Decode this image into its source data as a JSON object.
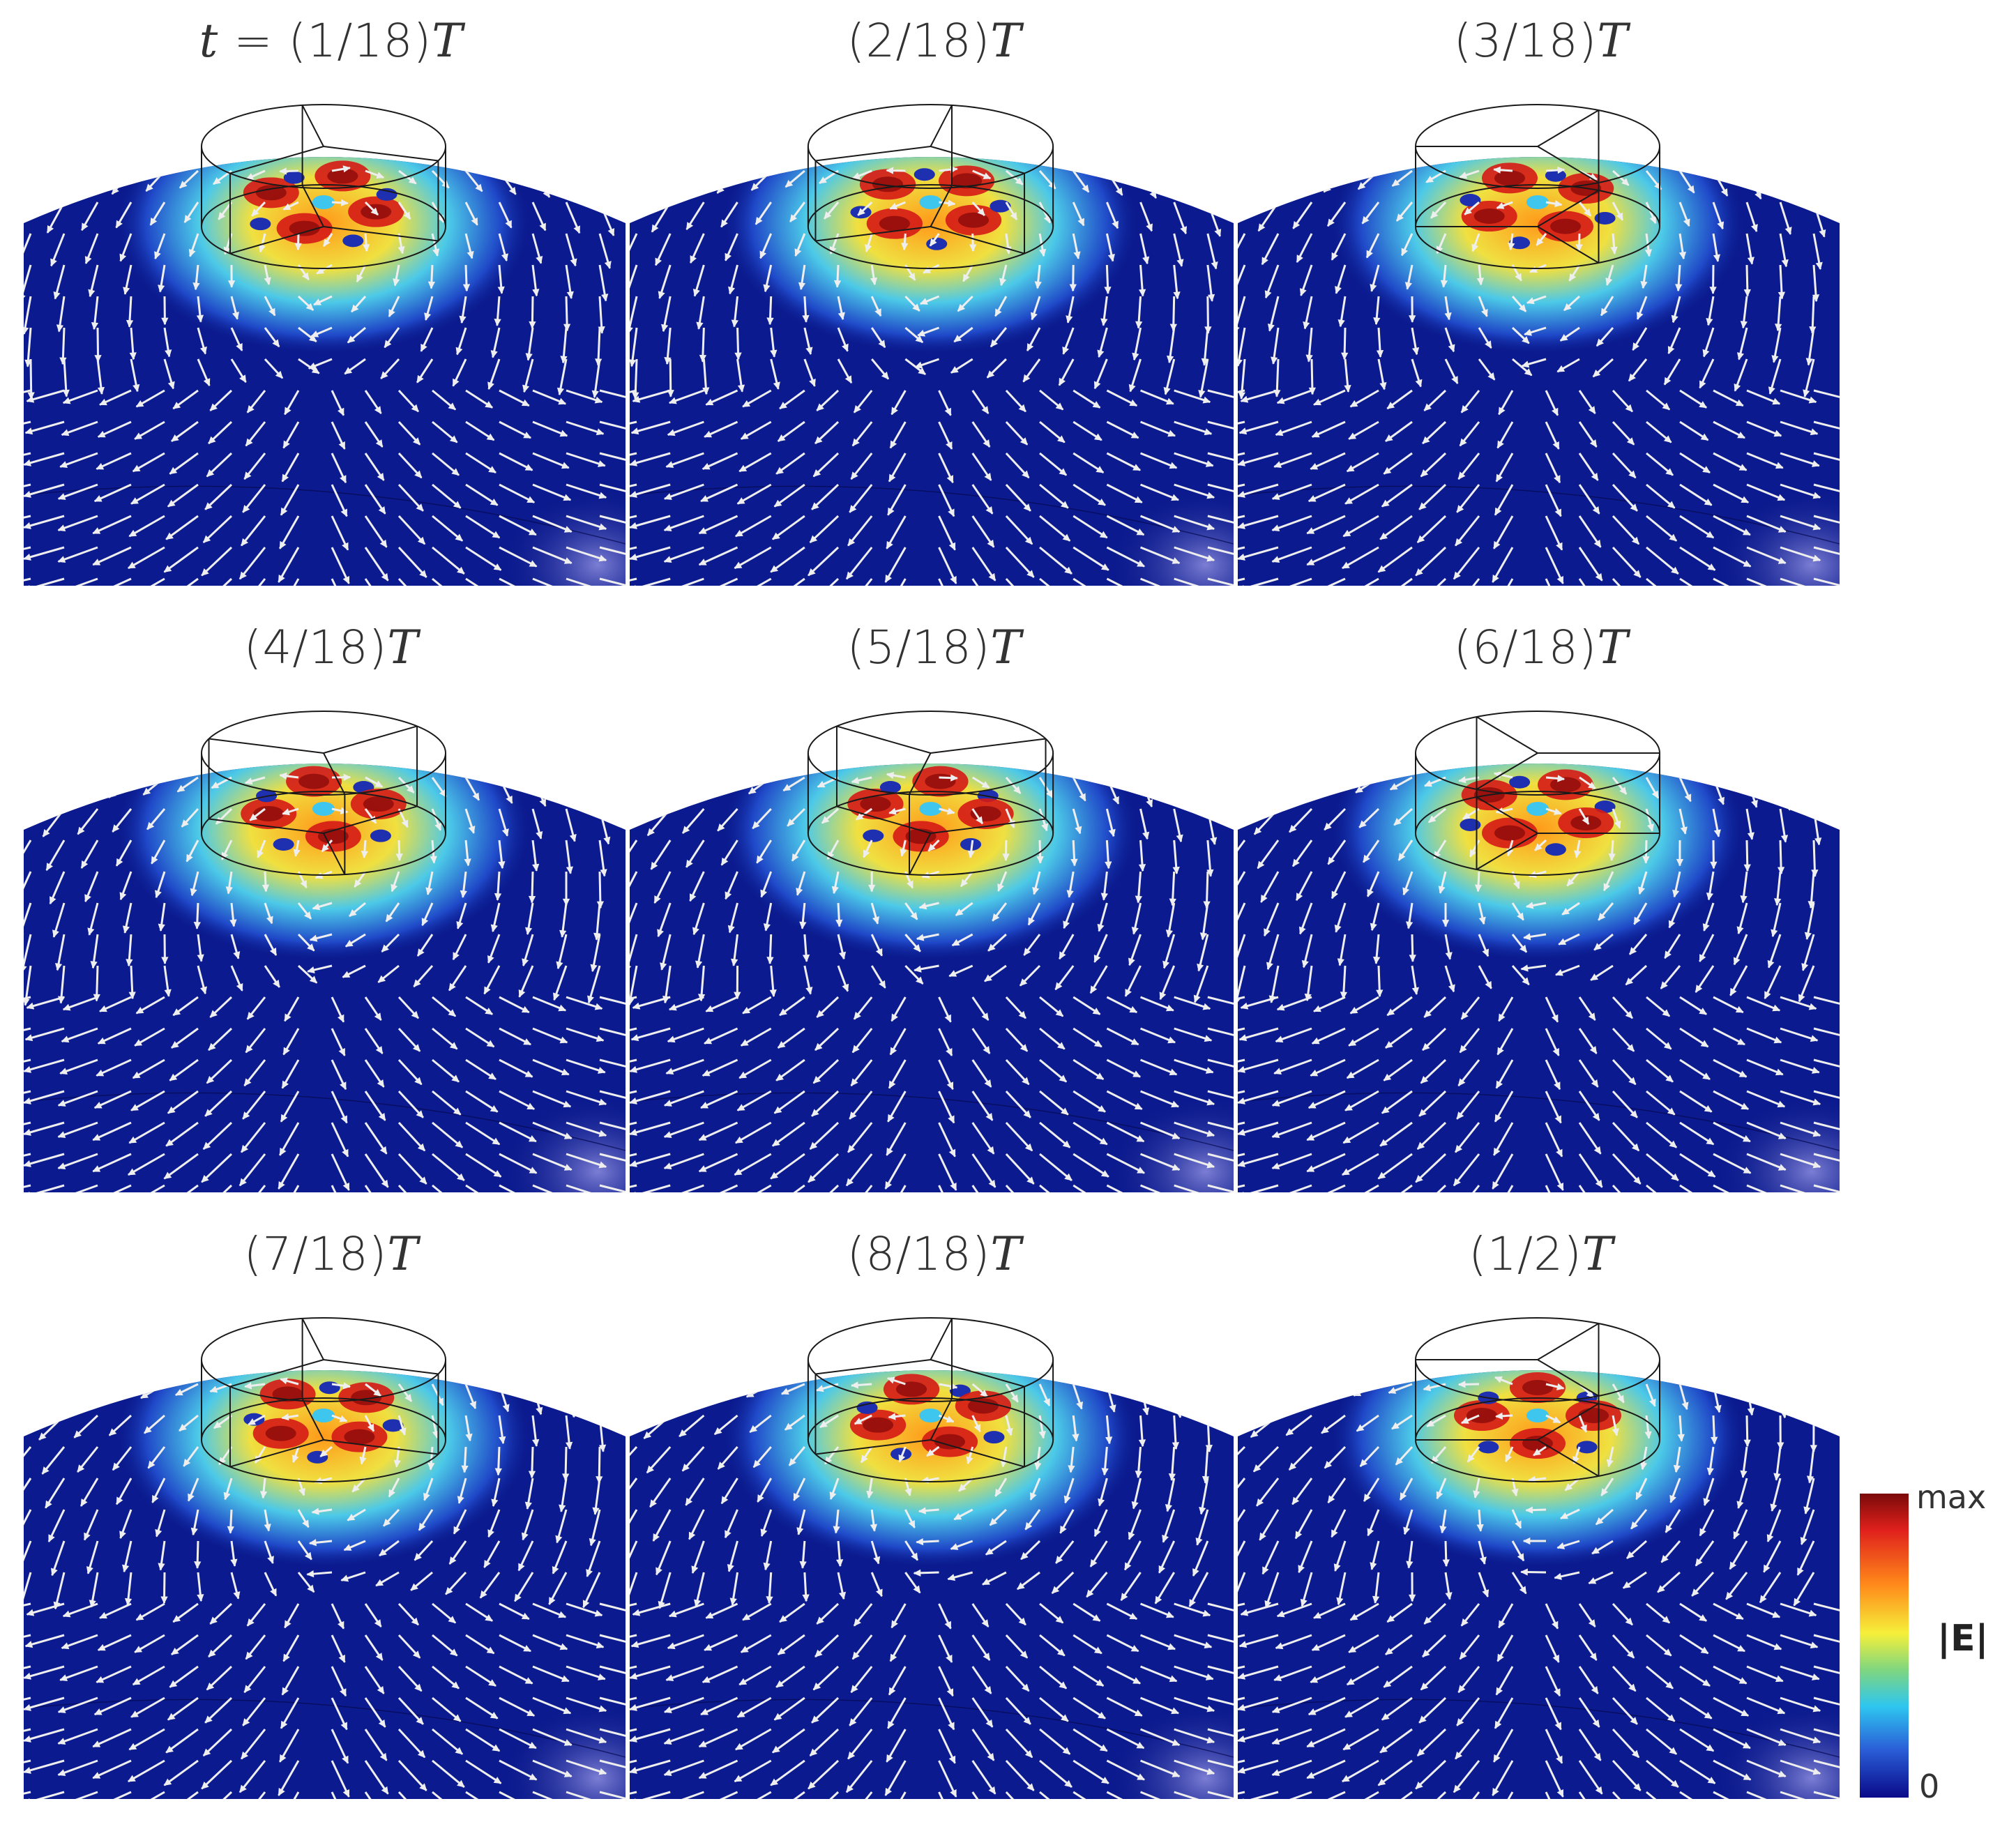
{
  "panels": [
    {
      "label": "(1/18)T",
      "prefix": "t = ",
      "frac": "(1/18)",
      "var": "T",
      "phase": 1
    },
    {
      "label": "(2/18)T",
      "prefix": "",
      "frac": "(2/18)",
      "var": "T",
      "phase": 2
    },
    {
      "label": "(3/18)T",
      "prefix": "",
      "frac": "(3/18)",
      "var": "T",
      "phase": 3
    },
    {
      "label": "(4/18)T",
      "prefix": "",
      "frac": "(4/18)",
      "var": "T",
      "phase": 4
    },
    {
      "label": "(5/18)T",
      "prefix": "",
      "frac": "(5/18)",
      "var": "T",
      "phase": 5
    },
    {
      "label": "(6/18)T",
      "prefix": "",
      "frac": "(6/18)",
      "var": "T",
      "phase": 6
    },
    {
      "label": "(7/18)T",
      "prefix": "",
      "frac": "(7/18)",
      "var": "T",
      "phase": 7
    },
    {
      "label": "(8/18)T",
      "prefix": "",
      "frac": "(8/18)",
      "var": "T",
      "phase": 8
    },
    {
      "label": "(1/2)T",
      "prefix": "",
      "frac": "(1/2)",
      "var": "T",
      "phase": 9
    }
  ],
  "colorbar": {
    "max_label": "max",
    "min_label": "0",
    "quantity_label": "|E|",
    "colors": [
      "#8b0000",
      "#e31a1c",
      "#ff7f00",
      "#ffff33",
      "#7fd37f",
      "#33ccff",
      "#2b5bd7",
      "#0a0a8c"
    ]
  },
  "field_colors": {
    "background": "#0a1a8c",
    "arrow": "#e8e8e8",
    "wireframe": "#222222"
  }
}
